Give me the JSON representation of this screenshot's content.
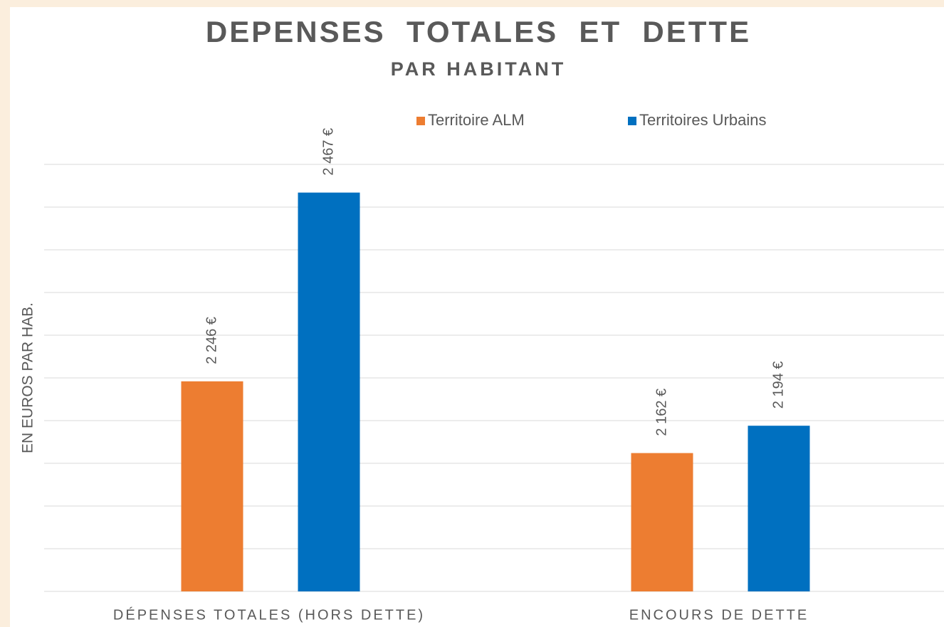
{
  "chart_data": {
    "type": "bar",
    "title": "DEPENSES  TOTALES  ET  DETTE",
    "subtitle": "PAR HABITANT",
    "y_label": "EN EUROS PAR HAB.",
    "categories": [
      "DÉPENSES TOTALES (HORS DETTE)",
      "ENCOURS DE DETTE"
    ],
    "series": [
      {
        "name": "Territoire ALM",
        "color": "#ed7d31",
        "values": [
          2246,
          2162
        ],
        "value_labels": [
          "2 246 €",
          "2 162 €"
        ]
      },
      {
        "name": "Territoires Urbains",
        "color": "#0070c0",
        "values": [
          2467,
          2194
        ],
        "value_labels": [
          "2 467 €",
          "2 194 €"
        ]
      }
    ],
    "ylim": [
      2000,
      2500
    ],
    "yticks": [
      2000,
      2050,
      2100,
      2150,
      2200,
      2250,
      2300,
      2350,
      2400,
      2450,
      2500
    ],
    "grid": true,
    "legend": "top"
  }
}
